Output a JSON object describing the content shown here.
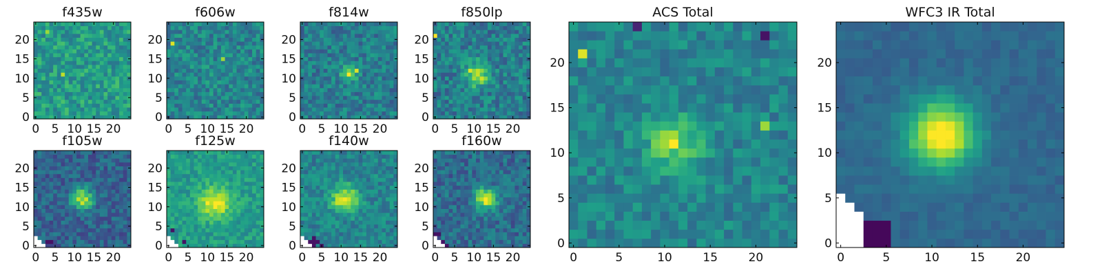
{
  "figure": {
    "panels": [
      {
        "key": "f435w",
        "title": "f435w",
        "x_ticks": [
          "0",
          "5",
          "10",
          "15",
          "20"
        ],
        "y_ticks": [
          "0",
          "5",
          "10",
          "15",
          "20"
        ]
      },
      {
        "key": "f606w",
        "title": "f606w",
        "x_ticks": [
          "0",
          "5",
          "10",
          "15",
          "20"
        ],
        "y_ticks": [
          "0",
          "5",
          "10",
          "15",
          "20"
        ]
      },
      {
        "key": "f814w",
        "title": "f814w",
        "x_ticks": [
          "0",
          "5",
          "10",
          "15",
          "20"
        ],
        "y_ticks": [
          "0",
          "5",
          "10",
          "15",
          "20"
        ]
      },
      {
        "key": "f850lp",
        "title": "f850lp",
        "x_ticks": [
          "0",
          "5",
          "10",
          "15",
          "20"
        ],
        "y_ticks": [
          "0",
          "5",
          "10",
          "15",
          "20"
        ]
      },
      {
        "key": "f105w",
        "title": "f105w",
        "x_ticks": [
          "0",
          "5",
          "10",
          "15",
          "20"
        ],
        "y_ticks": [
          "0",
          "5",
          "10",
          "15",
          "20"
        ]
      },
      {
        "key": "f125w",
        "title": "f125w",
        "x_ticks": [
          "0",
          "5",
          "10",
          "15",
          "20"
        ],
        "y_ticks": [
          "0",
          "5",
          "10",
          "15",
          "20"
        ]
      },
      {
        "key": "f140w",
        "title": "f140w",
        "x_ticks": [
          "0",
          "5",
          "10",
          "15",
          "20"
        ],
        "y_ticks": [
          "0",
          "5",
          "10",
          "15",
          "20"
        ]
      },
      {
        "key": "f160w",
        "title": "f160w",
        "x_ticks": [
          "0",
          "5",
          "10",
          "15",
          "20"
        ],
        "y_ticks": [
          "0",
          "5",
          "10",
          "15",
          "20"
        ]
      },
      {
        "key": "acs",
        "title": "ACS Total",
        "x_ticks": [
          "0",
          "5",
          "10",
          "15",
          "20"
        ],
        "y_ticks": [
          "0",
          "5",
          "10",
          "15",
          "20"
        ]
      },
      {
        "key": "wfc3",
        "title": "WFC3 IR Total",
        "x_ticks": [
          "0",
          "5",
          "10",
          "15",
          "20"
        ],
        "y_ticks": [
          "0",
          "5",
          "10",
          "15",
          "20"
        ]
      }
    ]
  },
  "chart_data": {
    "type": "heatmap",
    "colormap": "viridis",
    "colormap_stops": [
      "#440154",
      "#482878",
      "#3e4989",
      "#31688e",
      "#26828e",
      "#1f9e89",
      "#35b779",
      "#6ece58",
      "#b5de2b",
      "#fde725"
    ],
    "pixel_grid": [
      25,
      25
    ],
    "xlim": [
      -0.5,
      24.5
    ],
    "ylim": [
      -0.5,
      24.5
    ],
    "masked_color": "#ffffff",
    "maps": [
      {
        "name": "f435w",
        "source": {
          "x": 12,
          "y": 11,
          "peak": 0.0,
          "sigma": 2.0
        },
        "noise": 0.16,
        "base": 0.55,
        "seed": 11,
        "mask": "none",
        "hot_pixels": [
          [
            19,
            0.95,
            1
          ],
          [
            7,
            11,
            0.9
          ],
          [
            3,
            22,
            0.85
          ]
        ]
      },
      {
        "name": "f606w",
        "source": {
          "x": 12,
          "y": 11,
          "peak": 0.05,
          "sigma": 2.0
        },
        "noise": 0.15,
        "base": 0.45,
        "seed": 23,
        "mask": "none",
        "hot_pixels": [
          [
            1,
            19,
            0.95
          ],
          [
            14,
            15,
            0.85
          ]
        ]
      },
      {
        "name": "f814w",
        "source": {
          "x": 12,
          "y": 11,
          "peak": 0.35,
          "sigma": 1.5
        },
        "noise": 0.15,
        "base": 0.42,
        "seed": 37,
        "mask": "none",
        "hot_pixels": [
          [
            12,
            11,
            1.0
          ],
          [
            14,
            12,
            0.95
          ]
        ]
      },
      {
        "name": "f850lp",
        "source": {
          "x": 11,
          "y": 11,
          "peak": 0.45,
          "sigma": 2.2
        },
        "noise": 0.16,
        "base": 0.42,
        "seed": 41,
        "mask": "none",
        "hot_pixels": [
          [
            0,
            21,
            1.0
          ],
          [
            9,
            12,
            0.95
          ]
        ]
      },
      {
        "name": "f105w",
        "source": {
          "x": 12,
          "y": 12,
          "peak": 0.55,
          "sigma": 2.0
        },
        "noise": 0.13,
        "base": 0.32,
        "seed": 53,
        "mask": "corner",
        "hot_pixels": []
      },
      {
        "name": "f125w",
        "source": {
          "x": 12,
          "y": 11,
          "peak": 0.45,
          "sigma": 2.8
        },
        "noise": 0.11,
        "base": 0.55,
        "seed": 67,
        "mask": "corner",
        "hot_pixels": []
      },
      {
        "name": "f140w",
        "source": {
          "x": 11,
          "y": 12,
          "peak": 0.5,
          "sigma": 2.5
        },
        "noise": 0.13,
        "base": 0.45,
        "seed": 71,
        "mask": "corner",
        "hot_pixels": []
      },
      {
        "name": "f160w",
        "source": {
          "x": 13,
          "y": 12,
          "peak": 0.6,
          "sigma": 2.0
        },
        "noise": 0.14,
        "base": 0.35,
        "seed": 83,
        "mask": "corner",
        "hot_pixels": []
      },
      {
        "name": "ACS Total",
        "source": {
          "x": 11,
          "y": 11,
          "peak": 0.35,
          "sigma": 2.2
        },
        "noise": 0.12,
        "base": 0.45,
        "seed": 97,
        "mask": "none",
        "hot_pixels": [
          [
            1,
            21,
            0.95
          ],
          [
            11,
            11,
            1.0
          ],
          [
            21,
            13,
            0.85
          ],
          [
            21,
            23,
            0.05
          ],
          [
            7,
            24,
            0.1
          ]
        ]
      },
      {
        "name": "WFC3 IR Total",
        "source": {
          "x": 11,
          "y": 12,
          "peak": 0.72,
          "sigma": 2.6
        },
        "noise": 0.05,
        "base": 0.34,
        "seed": 101,
        "mask": "corner_large",
        "hot_pixels": []
      }
    ]
  }
}
